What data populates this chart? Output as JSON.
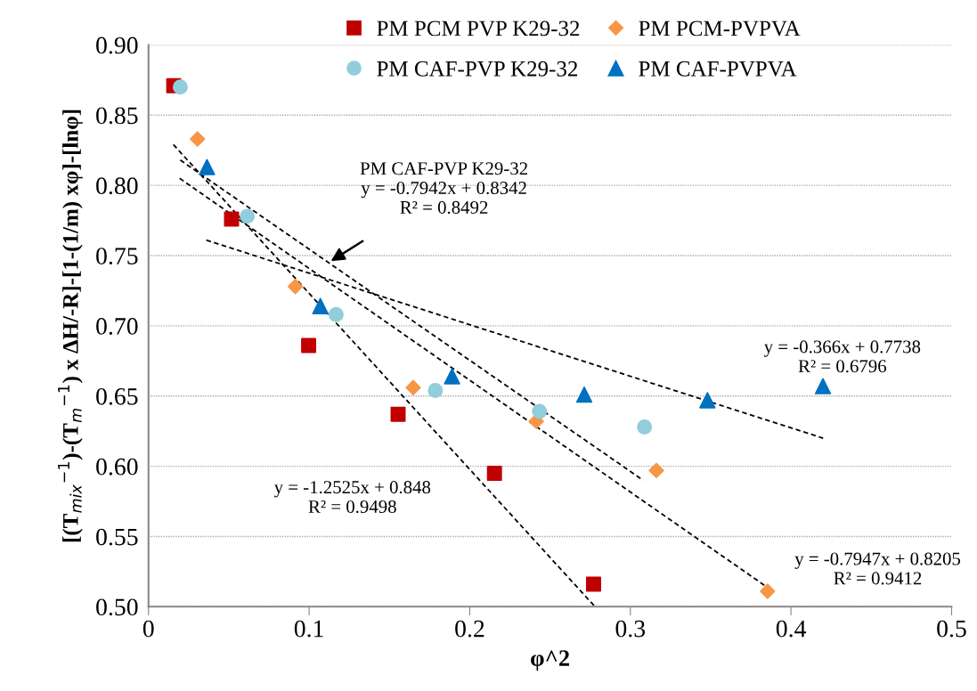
{
  "chart_data": {
    "type": "scatter",
    "xlabel": "φ^2",
    "ylabel": "[(T$_{mix}$$^{−1}$)-(T$_{m}$$^{−1}$) x ΔH/-R]-[1-(1/m) xφ]-[lnφ]",
    "xlim": [
      0,
      0.5
    ],
    "xticks": [
      0,
      0.1,
      0.2,
      0.3,
      0.4,
      0.5
    ],
    "ylim": [
      0.5,
      0.9
    ],
    "yticks": [
      {
        "value": 0.5,
        "label": "0.50"
      },
      {
        "value": 0.55,
        "label": "0.55"
      },
      {
        "value": 0.6,
        "label": "0.60"
      },
      {
        "value": 0.65,
        "label": "0.65"
      },
      {
        "value": 0.7,
        "label": "0.70"
      },
      {
        "value": 0.75,
        "label": "0.75"
      },
      {
        "value": 0.8,
        "label": "0.80"
      },
      {
        "value": 0.85,
        "label": "0.85"
      },
      {
        "value": 0.9,
        "label": "0.90"
      }
    ],
    "grid": "y",
    "legend": "top",
    "series": [
      {
        "name": "PM PCM PVP K29-32",
        "color": "#c00000",
        "marker": "square",
        "x": [
          0.0157,
          0.0517,
          0.0997,
          0.1554,
          0.2154,
          0.2771
        ],
        "values": [
          0.871,
          0.776,
          0.686,
          0.637,
          0.595,
          0.516
        ]
      },
      {
        "name": "PM PCM-PVPVA",
        "color": "#f79646",
        "marker": "diamond",
        "x": [
          0.0305,
          0.0914,
          0.1648,
          0.2414,
          0.3162,
          0.3854
        ],
        "values": [
          0.833,
          0.728,
          0.656,
          0.632,
          0.597,
          0.511
        ]
      },
      {
        "name": "PM CAF-PVP K29-32",
        "color": "#92cddc",
        "marker": "circle",
        "x": [
          0.0198,
          0.0615,
          0.1168,
          0.1786,
          0.2434,
          0.3088
        ],
        "values": [
          0.87,
          0.778,
          0.708,
          0.654,
          0.639,
          0.628
        ]
      },
      {
        "name": "PM CAF-PVPVA",
        "color": "#0070c0",
        "marker": "triangle",
        "x": [
          0.0364,
          0.107,
          0.189,
          0.2713,
          0.348,
          0.4199
        ],
        "values": [
          0.813,
          0.714,
          0.664,
          0.651,
          0.647,
          0.657
        ]
      },
      {
        "type": "line",
        "color": "#000000",
        "line_style": "dashed",
        "marker": "none",
        "x": [
          0.0155,
          0.278
        ],
        "values": [
          0.829,
          0.5
        ]
      },
      {
        "type": "line",
        "color": "#000000",
        "line_style": "dashed",
        "marker": "none",
        "x": [
          0.0194,
          0.385
        ],
        "values": [
          0.805,
          0.514
        ]
      },
      {
        "type": "line",
        "color": "#000000",
        "line_style": "dashed",
        "marker": "none",
        "x": [
          0.0198,
          0.308
        ],
        "values": [
          0.818,
          0.59
        ]
      },
      {
        "type": "line",
        "color": "#000000",
        "line_style": "dashed",
        "marker": "none",
        "x": [
          0.036,
          0.42
        ],
        "values": [
          0.761,
          0.62
        ]
      }
    ],
    "annotations": [
      "PM CAF-PVP K29-32\ny = -0.7942x + 0.8342\nR² = 0.8492",
      "y = -0.366x + 0.7738\nR² = 0.6796",
      "y = -1.2525x + 0.848\nR² = 0.9498",
      "y = -0.7947x + 0.8205\nR² = 0.9412"
    ]
  }
}
